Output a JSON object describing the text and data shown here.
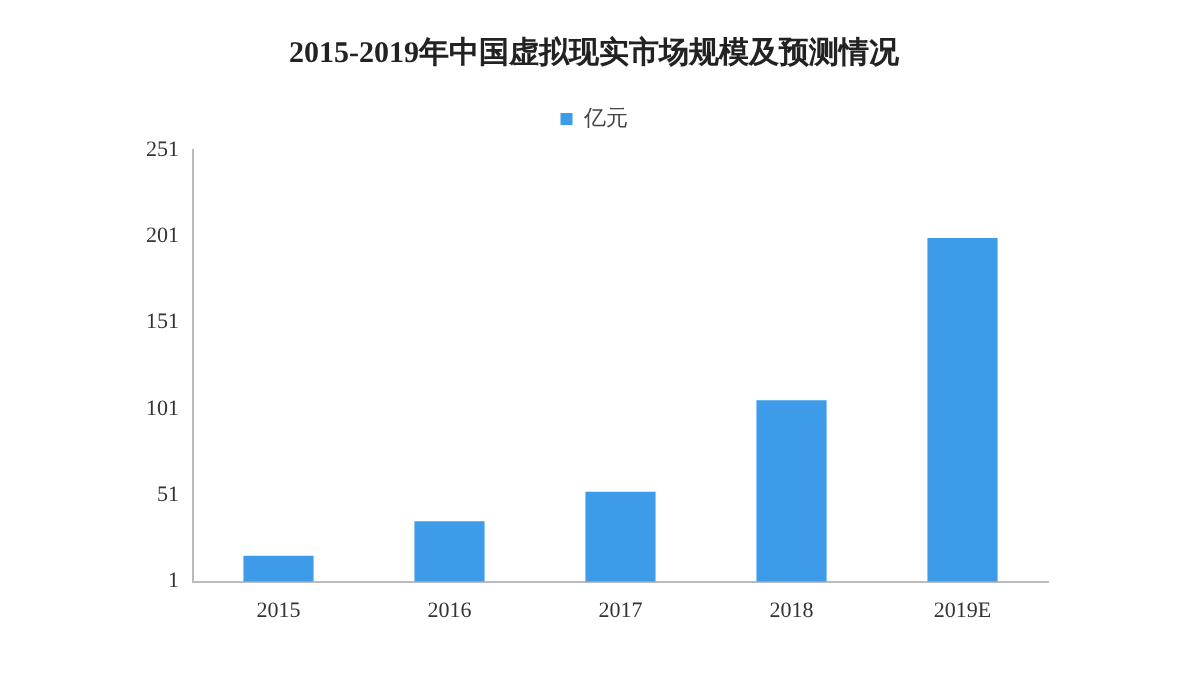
{
  "chart_data": {
    "type": "bar",
    "title": "2015-2019年中国虚拟现实市场规模及预测情况",
    "categories": [
      "2015",
      "2016",
      "2017",
      "2018",
      "2019E"
    ],
    "series": [
      {
        "name": "亿元",
        "color": "#3d9be9",
        "values": [
          16,
          36,
          53,
          106,
          200
        ]
      }
    ],
    "ylim": [
      1,
      251
    ],
    "yticks": [
      1,
      51,
      101,
      151,
      201,
      251
    ],
    "grid": false,
    "legend": "top"
  }
}
